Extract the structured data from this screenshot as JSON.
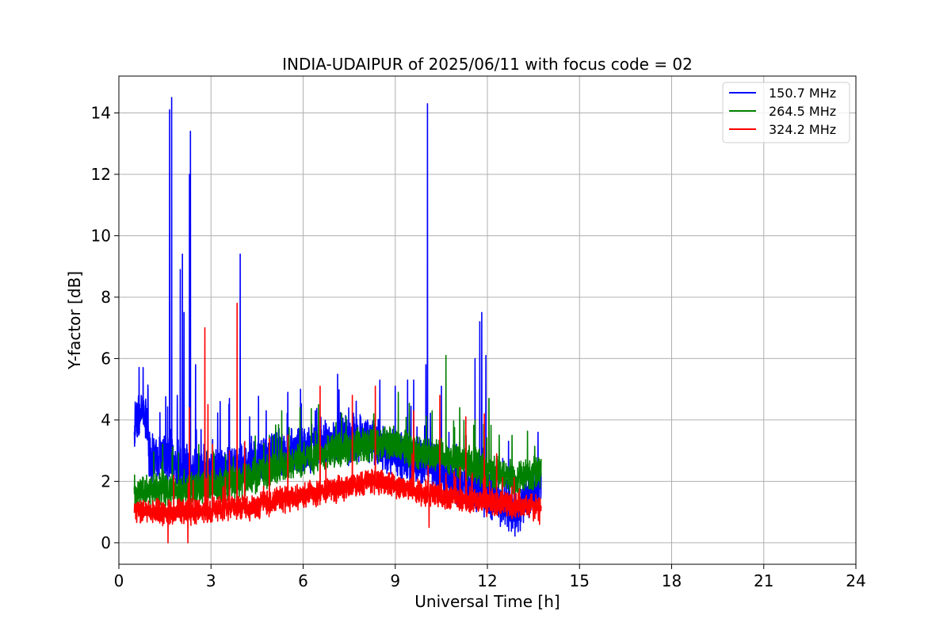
{
  "chart_data": {
    "type": "line",
    "title": "INDIA-UDAIPUR of 2025/06/11 with focus code = 02",
    "xlabel": "Universal Time [h]",
    "ylabel": "Y-factor [dB]",
    "xlim": [
      0,
      24
    ],
    "ylim": [
      -0.7,
      15.2
    ],
    "x_ticks": [
      "0",
      "3",
      "6",
      "9",
      "12",
      "15",
      "18",
      "21",
      "24"
    ],
    "y_ticks": [
      "0",
      "2",
      "4",
      "6",
      "8",
      "10",
      "12",
      "14"
    ],
    "grid": true,
    "legend_position": "top-right",
    "series": [
      {
        "name": "150.7 MHz",
        "color": "#0000ff",
        "x_range": [
          0.5,
          13.75
        ],
        "baseline": [
          [
            0.5,
            3.5
          ],
          [
            0.55,
            4.2
          ],
          [
            0.9,
            4.0
          ],
          [
            1.0,
            2.8
          ],
          [
            1.5,
            2.8
          ],
          [
            2.0,
            2.5
          ],
          [
            3.0,
            2.3
          ],
          [
            4.0,
            2.5
          ],
          [
            5.0,
            2.9
          ],
          [
            6.0,
            3.0
          ],
          [
            7.0,
            3.3
          ],
          [
            8.0,
            3.4
          ],
          [
            9.0,
            2.9
          ],
          [
            10.0,
            2.6
          ],
          [
            11.0,
            2.0
          ],
          [
            12.0,
            1.6
          ],
          [
            13.0,
            1.0
          ],
          [
            13.75,
            2.0
          ]
        ],
        "noise": 0.55,
        "spikes": [
          [
            0.95,
            5.0
          ],
          [
            1.65,
            14.1
          ],
          [
            1.72,
            14.5
          ],
          [
            1.9,
            4.8
          ],
          [
            2.0,
            8.9
          ],
          [
            2.07,
            9.4
          ],
          [
            2.12,
            7.5
          ],
          [
            2.3,
            12.0
          ],
          [
            2.33,
            13.4
          ],
          [
            2.5,
            5.8
          ],
          [
            3.3,
            4.6
          ],
          [
            3.6,
            4.7
          ],
          [
            3.95,
            9.4
          ],
          [
            4.8,
            4.3
          ],
          [
            5.5,
            4.9
          ],
          [
            6.4,
            4.3
          ],
          [
            8.5,
            5.3
          ],
          [
            9.0,
            5.1
          ],
          [
            9.4,
            5.3
          ],
          [
            9.6,
            5.3
          ],
          [
            10.0,
            5.8
          ],
          [
            10.05,
            14.3
          ],
          [
            10.5,
            5.1
          ],
          [
            11.6,
            6.0
          ],
          [
            11.75,
            7.2
          ],
          [
            11.82,
            7.5
          ],
          [
            11.95,
            6.1
          ],
          [
            13.65,
            3.6
          ]
        ]
      },
      {
        "name": "264.5 MHz",
        "color": "#008000",
        "x_range": [
          0.5,
          13.75
        ],
        "baseline": [
          [
            0.5,
            1.6
          ],
          [
            1.5,
            1.7
          ],
          [
            2.0,
            1.7
          ],
          [
            3.0,
            1.8
          ],
          [
            4.0,
            2.0
          ],
          [
            5.0,
            2.4
          ],
          [
            6.0,
            2.7
          ],
          [
            7.0,
            3.0
          ],
          [
            8.0,
            3.2
          ],
          [
            9.0,
            3.2
          ],
          [
            10.0,
            2.9
          ],
          [
            11.0,
            2.7
          ],
          [
            12.0,
            2.3
          ],
          [
            13.0,
            2.1
          ],
          [
            13.75,
            2.3
          ]
        ],
        "noise": 0.4,
        "spikes": [
          [
            1.4,
            2.6
          ],
          [
            2.6,
            3.2
          ],
          [
            3.1,
            2.9
          ],
          [
            4.9,
            3.5
          ],
          [
            5.3,
            4.3
          ],
          [
            5.9,
            4.4
          ],
          [
            6.5,
            4.5
          ],
          [
            7.4,
            4.1
          ],
          [
            8.3,
            4.2
          ],
          [
            9.1,
            4.9
          ],
          [
            10.2,
            4.3
          ],
          [
            10.65,
            6.1
          ],
          [
            11.1,
            4.4
          ],
          [
            11.6,
            4.0
          ],
          [
            12.05,
            4.7
          ],
          [
            12.8,
            3.5
          ]
        ]
      },
      {
        "name": "324.2 MHz",
        "color": "#ff0000",
        "x_range": [
          0.5,
          13.75
        ],
        "baseline": [
          [
            0.5,
            1.05
          ],
          [
            1.5,
            1.0
          ],
          [
            2.5,
            1.0
          ],
          [
            3.5,
            1.1
          ],
          [
            4.5,
            1.2
          ],
          [
            5.5,
            1.45
          ],
          [
            6.5,
            1.6
          ],
          [
            7.5,
            1.85
          ],
          [
            8.5,
            2.0
          ],
          [
            9.5,
            1.75
          ],
          [
            10.5,
            1.5
          ],
          [
            11.5,
            1.4
          ],
          [
            12.5,
            1.25
          ],
          [
            13.75,
            1.15
          ]
        ],
        "noise": 0.3,
        "spikes": [
          [
            1.6,
            0.0
          ],
          [
            2.25,
            0.0
          ],
          [
            2.3,
            4.4
          ],
          [
            2.8,
            7.0
          ],
          [
            2.9,
            4.5
          ],
          [
            3.05,
            3.2
          ],
          [
            3.6,
            3.0
          ],
          [
            3.85,
            7.8
          ],
          [
            4.1,
            3.3
          ],
          [
            4.9,
            3.4
          ],
          [
            5.5,
            3.5
          ],
          [
            6.55,
            5.1
          ],
          [
            7.6,
            4.8
          ],
          [
            8.35,
            5.1
          ],
          [
            9.6,
            4.3
          ],
          [
            10.45,
            4.8
          ],
          [
            10.1,
            0.5
          ],
          [
            11.3,
            4.1
          ],
          [
            11.9,
            4.2
          ],
          [
            12.3,
            2.9
          ],
          [
            13.7,
            0.6
          ]
        ]
      }
    ]
  }
}
